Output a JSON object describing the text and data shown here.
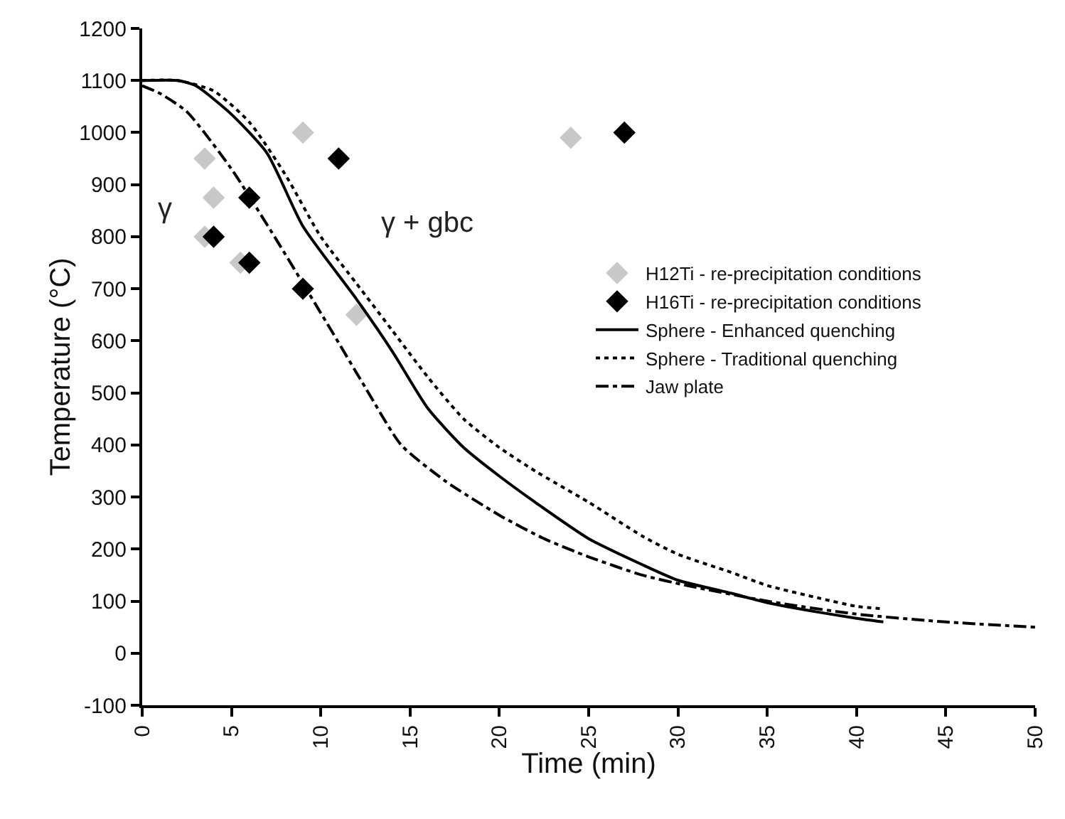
{
  "chart_data": {
    "type": "line",
    "xlabel": "Time (min)",
    "ylabel": "Temperature (°C)",
    "xlim": [
      0,
      50
    ],
    "xticks": [
      0,
      5,
      10,
      15,
      20,
      25,
      30,
      35,
      40,
      45,
      50
    ],
    "ylim": [
      -100,
      1200
    ],
    "yticks": [
      -100,
      0,
      100,
      200,
      300,
      400,
      500,
      600,
      700,
      800,
      900,
      1000,
      1100,
      1200
    ],
    "grid": false,
    "legend": "right",
    "annotations": [
      "γ",
      "γ + gbc"
    ],
    "series": [
      {
        "name": "H12Ti - re-precipitation conditions",
        "type": "scatter",
        "marker": "diamond",
        "color": "#c8c8c8",
        "x": [
          3.5,
          4,
          3.5,
          5.5,
          9,
          12,
          24
        ],
        "values": [
          950,
          875,
          800,
          750,
          1000,
          650,
          990
        ]
      },
      {
        "name": "H16Ti - re-precipitation conditions",
        "type": "scatter",
        "marker": "diamond",
        "color": "#000000",
        "x": [
          4,
          6,
          6,
          9,
          11,
          27
        ],
        "values": [
          800,
          875,
          750,
          700,
          950,
          1000
        ]
      },
      {
        "name": "Sphere - Enhanced quenching",
        "line_style": "solid",
        "color": "#000000",
        "x": [
          0,
          2,
          3,
          5,
          7,
          9,
          12,
          14,
          16,
          18,
          20,
          22,
          25,
          28,
          30,
          33,
          35,
          38,
          40,
          41.5
        ],
        "values": [
          1100,
          1100,
          1090,
          1035,
          960,
          820,
          680,
          580,
          470,
          395,
          340,
          290,
          220,
          170,
          140,
          115,
          97,
          78,
          67,
          60
        ]
      },
      {
        "name": "Sphere - Traditional quenching",
        "line_style": "dotted",
        "color": "#000000",
        "x": [
          0,
          2,
          4,
          6,
          8,
          10,
          12,
          14,
          16,
          18,
          20,
          22,
          25,
          28,
          30,
          33,
          35,
          38,
          40,
          41.5
        ],
        "values": [
          1100,
          1100,
          1080,
          1020,
          920,
          800,
          710,
          620,
          530,
          450,
          395,
          350,
          290,
          225,
          190,
          155,
          130,
          105,
          90,
          85
        ]
      },
      {
        "name": "Jaw plate",
        "line_style": "dashdot",
        "color": "#000000",
        "x": [
          0,
          1,
          2.5,
          5,
          7.5,
          10.5,
          12.5,
          14.5,
          17,
          20,
          22.5,
          25,
          28,
          30.5,
          35,
          40,
          45,
          50
        ],
        "values": [
          1090,
          1075,
          1040,
          930,
          795,
          625,
          510,
          400,
          330,
          265,
          220,
          185,
          150,
          130,
          100,
          75,
          60,
          50
        ]
      }
    ]
  }
}
